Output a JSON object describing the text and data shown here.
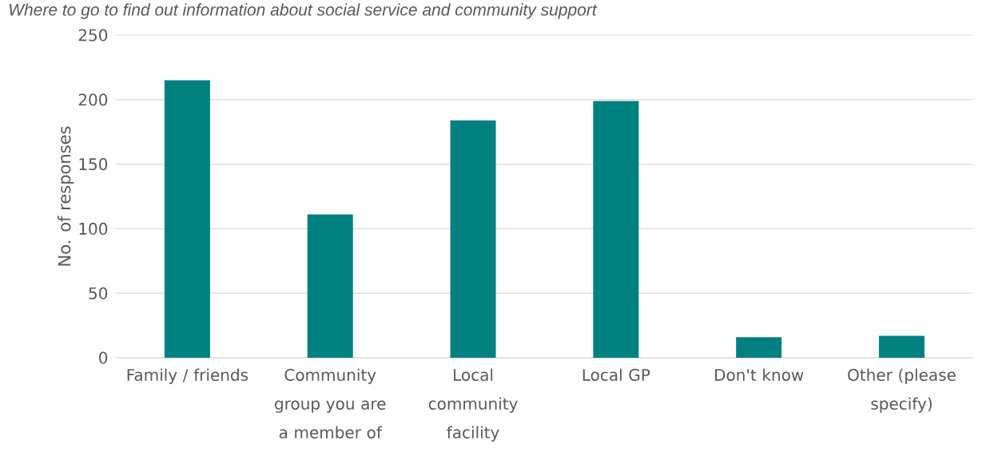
{
  "chart_data": {
    "type": "bar",
    "title": "Where to go to find out information about social service and community support",
    "categories": [
      "Family / friends",
      "Community group you are a member of",
      "Local community facility",
      "Local GP",
      "Don't know",
      "Other (please specify)"
    ],
    "values": [
      215,
      111,
      184,
      199,
      16,
      17
    ],
    "color": "#008080",
    "ylabel": "No. of responses",
    "ylim": [
      0,
      250
    ],
    "yticks": [
      0,
      50,
      100,
      150,
      200,
      250
    ],
    "grid": "y"
  }
}
